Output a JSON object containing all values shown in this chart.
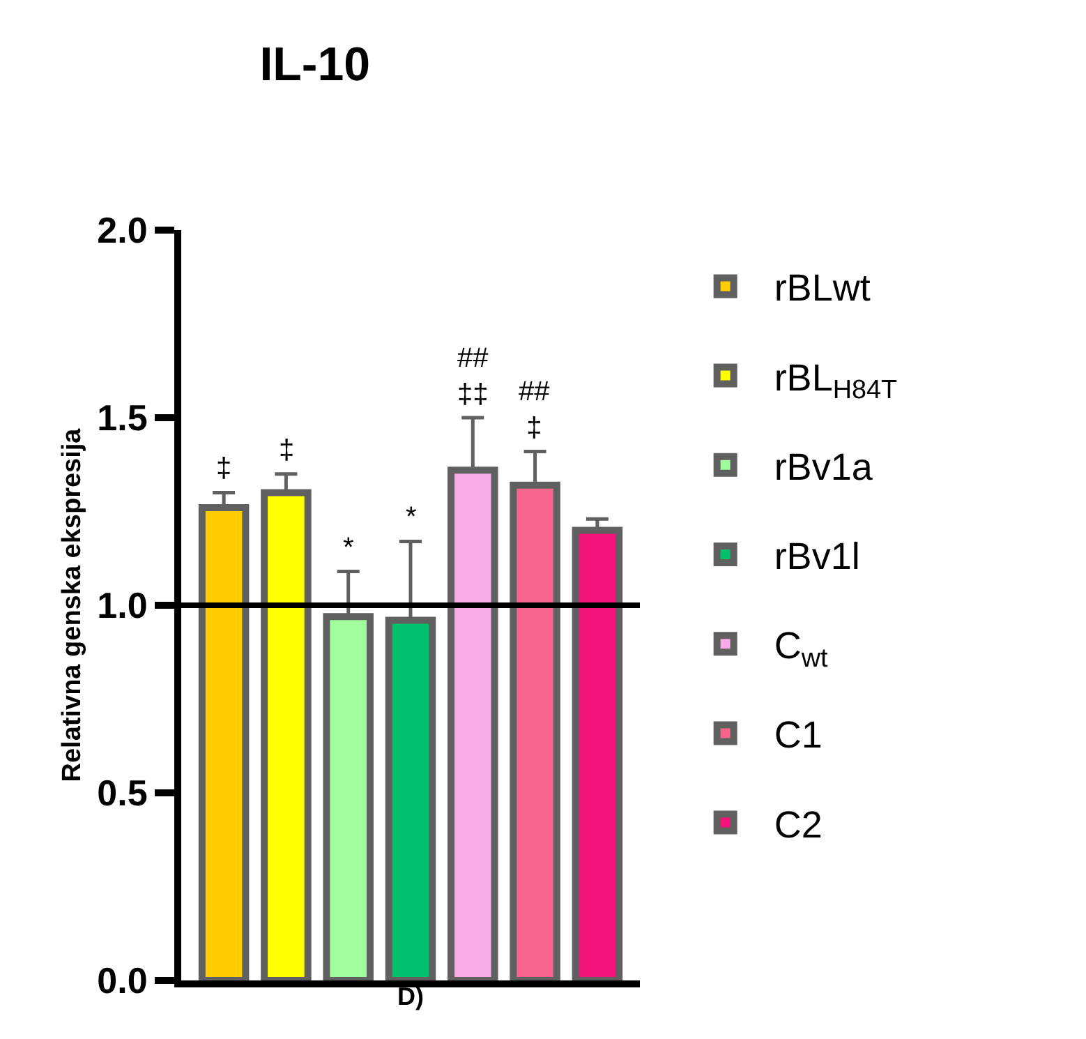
{
  "chart_data": {
    "type": "bar",
    "title": "IL-10",
    "xlabel": "D)",
    "ylabel": "Relativna genska ekspresija",
    "categories": [
      null
    ],
    "series": [
      {
        "name": "rBLwt",
        "color": "#ffcc00",
        "values": [
          1.26
        ],
        "errors": [
          [
            1.26,
            1.3
          ]
        ]
      },
      {
        "name": "rBL$_{H84T}$",
        "color": "#ffff00",
        "values": [
          1.3
        ],
        "errors": [
          [
            1.3,
            1.35
          ]
        ]
      },
      {
        "name": "rBv1a",
        "color": "#a0ff9c",
        "values": [
          0.97
        ],
        "errors": [
          [
            0.97,
            1.09
          ]
        ]
      },
      {
        "name": "rBv1l",
        "color": "#00c06e",
        "values": [
          0.96
        ],
        "errors": [
          [
            0.96,
            1.17
          ]
        ]
      },
      {
        "name": "C$_{wt}$",
        "color": "#f5abe6",
        "values": [
          1.36
        ],
        "errors": [
          [
            1.36,
            1.5
          ]
        ]
      },
      {
        "name": "C1",
        "color": "#f8648e",
        "values": [
          1.32
        ],
        "errors": [
          [
            1.32,
            1.41
          ]
        ]
      },
      {
        "name": "C2",
        "color": "#f5137c",
        "values": [
          1.2
        ],
        "errors": [
          [
            1.2,
            1.23
          ]
        ]
      }
    ],
    "annotations": [
      {
        "text": "‡",
        "y": 1.3
      },
      {
        "text": "‡",
        "y": 1.35
      },
      {
        "text": "*",
        "y": 1.09
      },
      {
        "text": "*",
        "y": 1.17
      },
      {
        "text": "##\n‡‡",
        "y": 1.5
      },
      {
        "text": "##\n‡",
        "y": 1.41
      }
    ],
    "ylim": [
      0,
      2.0
    ],
    "yticks": [
      {
        "value": 0,
        "label": "0.0"
      },
      {
        "value": 0.5,
        "label": "0.5"
      },
      {
        "value": 1.0,
        "label": "1.0"
      },
      {
        "value": 1.5,
        "label": "1.5"
      },
      {
        "value": 2.0,
        "label": "2.0"
      }
    ],
    "ref_lines": [
      {
        "axis": "y",
        "value": 1.0,
        "color": "#000000"
      }
    ],
    "legend": "right"
  }
}
